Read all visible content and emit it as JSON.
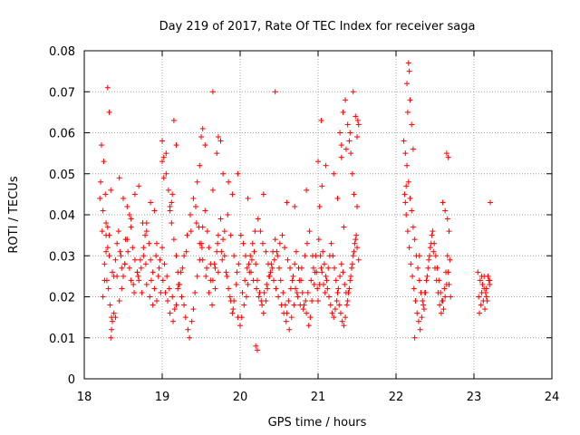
{
  "chart_data": {
    "type": "scatter",
    "title": "Day 219 of 2017, Rate Of TEC Index for receiver saga",
    "xlabel": "GPS time / hours",
    "ylabel": "ROTI / TECUs",
    "xlim": [
      18,
      24
    ],
    "ylim": [
      0,
      0.08
    ],
    "xticks": [
      "18",
      "19",
      "20",
      "21",
      "22",
      "23",
      "24"
    ],
    "yticks": [
      "0",
      "0.01",
      "0.02",
      "0.03",
      "0.04",
      "0.05",
      "0.06",
      "0.07",
      "0.08"
    ],
    "grid": true,
    "marker": "plus",
    "color": "#ff0000",
    "series": [
      {
        "name": "ROTI",
        "x": [
          18.22,
          18.25,
          18.27,
          18.28,
          18.3,
          18.2,
          18.23,
          18.26,
          18.29,
          18.31,
          18.33,
          18.35,
          18.21,
          18.24,
          18.28,
          18.32,
          18.36,
          18.38,
          18.4,
          18.42,
          18.44,
          18.46,
          18.48,
          18.5,
          18.52,
          18.55,
          18.58,
          18.6,
          18.62,
          18.65,
          18.68,
          18.7,
          18.73,
          18.76,
          18.78,
          18.8,
          18.83,
          18.85,
          18.88,
          18.9,
          18.93,
          18.95,
          18.98,
          18.3,
          18.32,
          18.34,
          18.45,
          18.5,
          18.55,
          18.6,
          18.65,
          18.7,
          18.75,
          18.8,
          18.85,
          18.9,
          18.24,
          18.26,
          18.28,
          18.3,
          18.32,
          18.35,
          18.4,
          18.45,
          18.48,
          18.52,
          18.56,
          18.6,
          18.64,
          18.68,
          18.72,
          18.76,
          18.8,
          18.84,
          18.88,
          18.92,
          18.96,
          18.34,
          18.36,
          18.38,
          18.42,
          18.47,
          18.53,
          18.58,
          18.63,
          18.69,
          18.74,
          18.79,
          18.86,
          18.93,
          18.97,
          19.0,
          19.02,
          19.05,
          19.08,
          19.1,
          19.12,
          19.15,
          19.18,
          19.2,
          19.22,
          19.25,
          19.28,
          19.3,
          19.33,
          19.35,
          19.38,
          19.4,
          19.42,
          19.45,
          19.48,
          19.5,
          19.52,
          19.55,
          19.58,
          19.6,
          19.62,
          19.65,
          19.68,
          19.7,
          19.72,
          19.75,
          19.78,
          19.8,
          19.82,
          19.85,
          19.88,
          19.9,
          19.92,
          19.95,
          19.98,
          19.0,
          19.03,
          19.06,
          19.09,
          19.13,
          19.16,
          19.2,
          19.24,
          19.28,
          19.32,
          19.36,
          19.4,
          19.44,
          19.48,
          19.52,
          19.56,
          19.6,
          19.64,
          19.68,
          19.72,
          19.76,
          19.8,
          19.84,
          19.88,
          19.92,
          19.96,
          19.01,
          19.04,
          19.07,
          19.1,
          19.14,
          19.18,
          19.21,
          19.26,
          19.31,
          19.37,
          19.43,
          19.47,
          19.51,
          19.57,
          19.62,
          19.67,
          19.71,
          19.77,
          19.83,
          19.87,
          19.91,
          19.97,
          19.0,
          19.02,
          19.05,
          19.15,
          19.18,
          19.45,
          19.48,
          19.5,
          19.52,
          19.55,
          19.65,
          19.7,
          19.72,
          19.75,
          19.78,
          19.85,
          19.9,
          19.1,
          19.12,
          19.13,
          19.65,
          19.97,
          20.0,
          20.02,
          20.05,
          20.08,
          20.1,
          20.12,
          20.15,
          20.18,
          20.2,
          20.22,
          20.25,
          20.28,
          20.3,
          20.33,
          20.35,
          20.38,
          20.4,
          20.42,
          20.45,
          20.48,
          20.5,
          20.52,
          20.55,
          20.58,
          20.6,
          20.62,
          20.65,
          20.68,
          20.7,
          20.72,
          20.75,
          20.78,
          20.8,
          20.82,
          20.85,
          20.88,
          20.9,
          20.92,
          20.95,
          20.98,
          20.01,
          20.04,
          20.07,
          20.11,
          20.14,
          20.17,
          20.21,
          20.24,
          20.27,
          20.31,
          20.34,
          20.37,
          20.41,
          20.44,
          20.47,
          20.51,
          20.54,
          20.57,
          20.61,
          20.64,
          20.67,
          20.71,
          20.74,
          20.77,
          20.81,
          20.84,
          20.87,
          20.91,
          20.94,
          20.97,
          20.03,
          20.06,
          20.09,
          20.13,
          20.16,
          20.19,
          20.23,
          20.26,
          20.29,
          20.33,
          20.36,
          20.39,
          20.43,
          20.46,
          20.49,
          20.53,
          20.56,
          20.59,
          20.63,
          20.66,
          20.69,
          20.73,
          20.76,
          20.79,
          20.83,
          20.86,
          20.89,
          20.93,
          20.96,
          20.99,
          20.2,
          20.22,
          20.45,
          20.1,
          20.3,
          20.6,
          20.7,
          20.85,
          21.0,
          21.02,
          21.04,
          21.06,
          21.08,
          21.1,
          21.12,
          21.14,
          21.16,
          21.18,
          21.2,
          21.22,
          21.24,
          21.26,
          21.28,
          21.3,
          21.32,
          21.34,
          21.36,
          21.38,
          21.4,
          21.42,
          21.44,
          21.46,
          21.48,
          21.5,
          21.52,
          21.01,
          21.03,
          21.05,
          21.07,
          21.09,
          21.11,
          21.13,
          21.15,
          21.17,
          21.19,
          21.21,
          21.23,
          21.25,
          21.27,
          21.29,
          21.31,
          21.33,
          21.35,
          21.37,
          21.39,
          21.41,
          21.43,
          21.45,
          21.47,
          21.49,
          21.51,
          21.0,
          21.02,
          21.04,
          21.28,
          21.3,
          21.32,
          21.35,
          21.38,
          21.4,
          21.42,
          21.45,
          21.48,
          21.5,
          21.52,
          21.05,
          21.1,
          21.2,
          21.25,
          21.33,
          21.44,
          21.5,
          21.3,
          21.36,
          21.41,
          21.46,
          22.1,
          22.12,
          22.14,
          22.16,
          22.18,
          22.2,
          22.22,
          22.24,
          22.26,
          22.28,
          22.3,
          22.32,
          22.34,
          22.36,
          22.38,
          22.4,
          22.42,
          22.44,
          22.46,
          22.48,
          22.5,
          22.52,
          22.54,
          22.56,
          22.58,
          22.6,
          22.62,
          22.64,
          22.66,
          22.68,
          22.7,
          22.11,
          22.13,
          22.15,
          22.17,
          22.19,
          22.21,
          22.23,
          22.25,
          22.27,
          22.29,
          22.31,
          22.33,
          22.35,
          22.37,
          22.39,
          22.41,
          22.43,
          22.45,
          22.47,
          22.49,
          22.51,
          22.53,
          22.55,
          22.57,
          22.59,
          22.61,
          22.63,
          22.65,
          22.67,
          22.69,
          22.14,
          22.15,
          22.16,
          22.17,
          22.18,
          22.2,
          22.22,
          22.12,
          22.13,
          22.65,
          22.67,
          22.6,
          22.63,
          22.66,
          22.68,
          22.24,
          22.3,
          23.05,
          23.08,
          23.1,
          23.12,
          23.14,
          23.16,
          23.18,
          23.2,
          23.06,
          23.09,
          23.11,
          23.13,
          23.15,
          23.17,
          23.19,
          23.07,
          23.1,
          23.13,
          23.16,
          23.2,
          23.21
        ],
        "y": [
          0.057,
          0.053,
          0.045,
          0.038,
          0.032,
          0.044,
          0.036,
          0.028,
          0.024,
          0.022,
          0.018,
          0.015,
          0.048,
          0.041,
          0.035,
          0.03,
          0.026,
          0.025,
          0.029,
          0.033,
          0.036,
          0.031,
          0.027,
          0.025,
          0.028,
          0.034,
          0.04,
          0.037,
          0.032,
          0.029,
          0.026,
          0.024,
          0.027,
          0.03,
          0.035,
          0.038,
          0.033,
          0.029,
          0.026,
          0.022,
          0.019,
          0.025,
          0.021,
          0.071,
          0.065,
          0.046,
          0.049,
          0.044,
          0.042,
          0.039,
          0.045,
          0.047,
          0.038,
          0.036,
          0.043,
          0.041,
          0.02,
          0.024,
          0.031,
          0.037,
          0.035,
          0.012,
          0.015,
          0.019,
          0.022,
          0.028,
          0.031,
          0.024,
          0.021,
          0.026,
          0.029,
          0.032,
          0.023,
          0.02,
          0.018,
          0.03,
          0.027,
          0.01,
          0.014,
          0.016,
          0.025,
          0.03,
          0.034,
          0.027,
          0.023,
          0.025,
          0.021,
          0.028,
          0.024,
          0.033,
          0.029,
          0.058,
          0.054,
          0.05,
          0.046,
          0.042,
          0.038,
          0.034,
          0.03,
          0.026,
          0.023,
          0.02,
          0.018,
          0.015,
          0.012,
          0.01,
          0.014,
          0.017,
          0.021,
          0.025,
          0.029,
          0.033,
          0.037,
          0.041,
          0.036,
          0.032,
          0.028,
          0.024,
          0.027,
          0.031,
          0.035,
          0.039,
          0.034,
          0.03,
          0.026,
          0.022,
          0.019,
          0.016,
          0.019,
          0.023,
          0.028,
          0.032,
          0.028,
          0.025,
          0.022,
          0.02,
          0.017,
          0.022,
          0.026,
          0.03,
          0.035,
          0.04,
          0.044,
          0.038,
          0.033,
          0.029,
          0.025,
          0.021,
          0.018,
          0.022,
          0.026,
          0.031,
          0.036,
          0.04,
          0.035,
          0.03,
          0.026,
          0.024,
          0.021,
          0.019,
          0.016,
          0.014,
          0.018,
          0.023,
          0.027,
          0.031,
          0.036,
          0.042,
          0.037,
          0.032,
          0.027,
          0.024,
          0.028,
          0.033,
          0.029,
          0.025,
          0.02,
          0.017,
          0.015,
          0.053,
          0.049,
          0.055,
          0.063,
          0.057,
          0.048,
          0.052,
          0.059,
          0.061,
          0.057,
          0.046,
          0.055,
          0.059,
          0.058,
          0.05,
          0.048,
          0.045,
          0.041,
          0.043,
          0.045,
          0.07,
          0.05,
          0.013,
          0.015,
          0.018,
          0.02,
          0.023,
          0.026,
          0.029,
          0.031,
          0.028,
          0.024,
          0.021,
          0.018,
          0.016,
          0.019,
          0.022,
          0.025,
          0.028,
          0.031,
          0.034,
          0.03,
          0.027,
          0.024,
          0.021,
          0.018,
          0.016,
          0.019,
          0.022,
          0.025,
          0.028,
          0.031,
          0.027,
          0.024,
          0.021,
          0.018,
          0.016,
          0.013,
          0.015,
          0.019,
          0.023,
          0.026,
          0.035,
          0.033,
          0.03,
          0.028,
          0.026,
          0.024,
          0.022,
          0.02,
          0.019,
          0.021,
          0.023,
          0.025,
          0.027,
          0.029,
          0.031,
          0.033,
          0.035,
          0.032,
          0.029,
          0.027,
          0.024,
          0.022,
          0.02,
          0.018,
          0.017,
          0.019,
          0.021,
          0.024,
          0.027,
          0.03,
          0.021,
          0.024,
          0.027,
          0.03,
          0.033,
          0.036,
          0.039,
          0.036,
          0.033,
          0.031,
          0.028,
          0.026,
          0.024,
          0.022,
          0.02,
          0.018,
          0.016,
          0.014,
          0.012,
          0.015,
          0.018,
          0.021,
          0.024,
          0.027,
          0.03,
          0.033,
          0.036,
          0.03,
          0.026,
          0.022,
          0.008,
          0.007,
          0.07,
          0.044,
          0.045,
          0.043,
          0.042,
          0.046,
          0.019,
          0.023,
          0.027,
          0.031,
          0.028,
          0.025,
          0.022,
          0.02,
          0.018,
          0.016,
          0.015,
          0.017,
          0.019,
          0.022,
          0.025,
          0.028,
          0.026,
          0.023,
          0.021,
          0.019,
          0.022,
          0.025,
          0.028,
          0.031,
          0.034,
          0.032,
          0.029,
          0.034,
          0.03,
          0.026,
          0.023,
          0.021,
          0.024,
          0.027,
          0.03,
          0.033,
          0.03,
          0.027,
          0.024,
          0.021,
          0.018,
          0.016,
          0.014,
          0.013,
          0.015,
          0.018,
          0.021,
          0.024,
          0.027,
          0.03,
          0.033,
          0.035,
          0.063,
          0.053,
          0.042,
          0.063,
          0.06,
          0.057,
          0.065,
          0.068,
          0.062,
          0.058,
          0.055,
          0.07,
          0.064,
          0.059,
          0.062,
          0.047,
          0.052,
          0.05,
          0.044,
          0.037,
          0.05,
          0.042,
          0.054,
          0.056,
          0.06,
          0.045,
          0.058,
          0.055,
          0.052,
          0.048,
          0.044,
          0.041,
          0.037,
          0.034,
          0.03,
          0.027,
          0.024,
          0.021,
          0.019,
          0.017,
          0.021,
          0.025,
          0.029,
          0.032,
          0.035,
          0.031,
          0.027,
          0.024,
          0.021,
          0.018,
          0.016,
          0.019,
          0.022,
          0.026,
          0.03,
          0.023,
          0.02,
          0.045,
          0.04,
          0.036,
          0.032,
          0.028,
          0.025,
          0.022,
          0.019,
          0.016,
          0.014,
          0.012,
          0.015,
          0.018,
          0.021,
          0.024,
          0.027,
          0.03,
          0.033,
          0.036,
          0.033,
          0.03,
          0.027,
          0.024,
          0.021,
          0.019,
          0.017,
          0.02,
          0.023,
          0.026,
          0.029,
          0.072,
          0.065,
          0.077,
          0.075,
          0.068,
          0.062,
          0.056,
          0.043,
          0.047,
          0.055,
          0.054,
          0.043,
          0.041,
          0.039,
          0.036,
          0.01,
          0.03,
          0.026,
          0.024,
          0.021,
          0.019,
          0.017,
          0.022,
          0.025,
          0.023,
          0.02,
          0.018,
          0.023,
          0.025,
          0.021,
          0.019,
          0.024,
          0.016,
          0.025,
          0.022,
          0.02,
          0.024,
          0.043
        ]
      }
    ]
  }
}
